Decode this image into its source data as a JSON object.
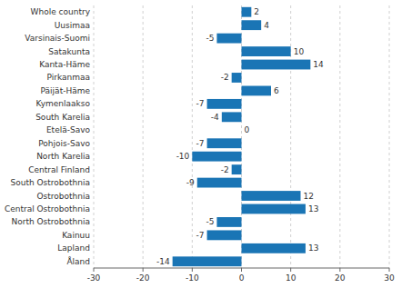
{
  "chart_data": {
    "type": "bar",
    "orientation": "horizontal",
    "categories": [
      "Whole country",
      "Uusimaa",
      "Varsinais-Suomi",
      "Satakunta",
      "Kanta-Häme",
      "Pirkanmaa",
      "Päijät-Häme",
      "Kymenlaakso",
      "South Karelia",
      "Etelä-Savo",
      "Pohjois-Savo",
      "North Karelia",
      "Central Finland",
      "South Ostrobothnia",
      "Ostrobothnia",
      "Central Ostrobothnia",
      "North Ostrobothnia",
      "Kainuu",
      "Lapland",
      "Åland"
    ],
    "values": [
      2,
      4,
      -5,
      10,
      14,
      -2,
      6,
      -7,
      -4,
      0,
      -7,
      -10,
      -2,
      -9,
      12,
      13,
      -5,
      -7,
      13,
      -14
    ],
    "color": "#1a75b5",
    "xlim": [
      -30,
      30
    ],
    "xticks": [
      -30,
      -20,
      -10,
      0,
      10,
      20,
      30
    ],
    "grid": true,
    "data_labels": true
  }
}
